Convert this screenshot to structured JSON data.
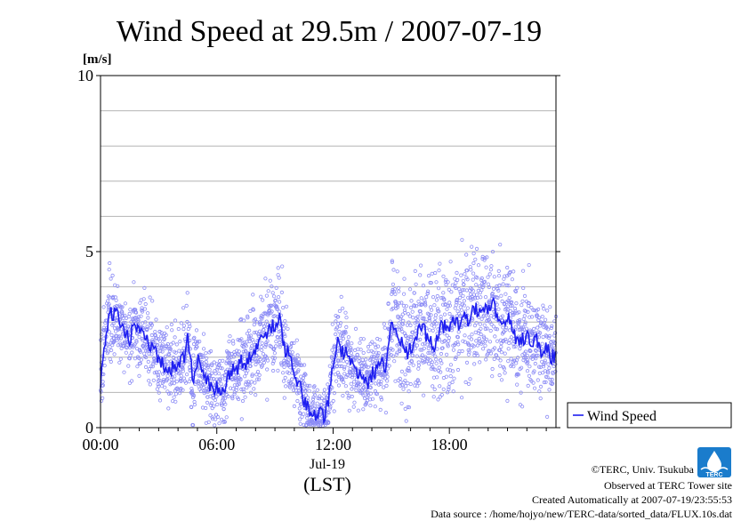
{
  "chart_data": {
    "type": "scatter",
    "title": "Wind Speed at 29.5m / 2007-07-19",
    "unit_label": "[m/s]",
    "ylim": [
      0,
      10
    ],
    "y_ticks": [
      "0",
      "5",
      "10"
    ],
    "xlim_hours": [
      0,
      23.5
    ],
    "x_ticks": [
      {
        "hour": 0,
        "label": "00:00"
      },
      {
        "hour": 6,
        "label": "06:00"
      },
      {
        "hour": 12,
        "label": "12:00"
      },
      {
        "hour": 18,
        "label": "18:00"
      }
    ],
    "date_label": "Jul-19",
    "timezone_label": "(LST)",
    "grid": true,
    "legend_position": "right",
    "series": [
      {
        "name": "Wind Speed",
        "color": "#1e1ef0",
        "scatter_color": "#8c8cf5",
        "x_hours": [
          0,
          0.25,
          0.5,
          0.75,
          1,
          1.25,
          1.5,
          1.75,
          2,
          2.25,
          2.5,
          2.75,
          3,
          3.25,
          3.5,
          3.75,
          4,
          4.25,
          4.5,
          4.75,
          5,
          5.25,
          5.5,
          5.75,
          6,
          6.25,
          6.5,
          6.75,
          7,
          7.25,
          7.5,
          7.75,
          8,
          8.25,
          8.5,
          8.75,
          9,
          9.25,
          9.5,
          9.75,
          10,
          10.25,
          10.5,
          10.75,
          11,
          11.25,
          11.5,
          11.75,
          12,
          12.25,
          12.5,
          12.75,
          13,
          13.25,
          13.5,
          13.75,
          14,
          14.25,
          14.5,
          14.75,
          15,
          15.25,
          15.5,
          15.75,
          16,
          16.25,
          16.5,
          16.75,
          17,
          17.25,
          17.5,
          17.75,
          18,
          18.25,
          18.5,
          18.75,
          19,
          19.25,
          19.5,
          19.75,
          20,
          20.25,
          20.5,
          20.75,
          21,
          21.25,
          21.5,
          21.75,
          22,
          22.25,
          22.5,
          22.75,
          23,
          23.25,
          23.5
        ],
        "mean_values": [
          1.3,
          2.6,
          3.2,
          3.3,
          3.0,
          2.7,
          2.5,
          2.9,
          2.8,
          2.6,
          2.4,
          2.2,
          2.0,
          1.8,
          1.7,
          1.7,
          1.9,
          1.9,
          2.5,
          1.4,
          1.9,
          1.7,
          1.3,
          1.1,
          1.2,
          0.9,
          1.3,
          1.7,
          1.6,
          1.9,
          1.8,
          2.1,
          2.3,
          2.6,
          2.5,
          2.8,
          2.9,
          3.1,
          2.2,
          2.1,
          1.6,
          1.2,
          0.8,
          0.5,
          0.4,
          0.4,
          0.3,
          0.7,
          1.8,
          2.4,
          2.1,
          2.2,
          1.7,
          1.5,
          1.4,
          1.2,
          1.5,
          1.7,
          1.8,
          1.6,
          3.1,
          2.9,
          2.4,
          2.1,
          2.2,
          2.6,
          2.9,
          2.7,
          2.5,
          2.3,
          2.8,
          2.9,
          2.8,
          3.0,
          2.9,
          3.1,
          3.1,
          3.4,
          3.3,
          3.4,
          3.3,
          3.5,
          3.2,
          2.9,
          3.2,
          2.8,
          2.5,
          2.5,
          2.6,
          2.4,
          2.5,
          2.2,
          2.3,
          2.0,
          2.1,
          2.2,
          1.9
        ],
        "spread_values": [
          0.5,
          0.5,
          0.6,
          0.6,
          0.6,
          0.6,
          0.6,
          0.6,
          0.6,
          0.6,
          0.6,
          0.6,
          0.6,
          0.6,
          0.6,
          0.6,
          0.6,
          0.6,
          0.6,
          0.6,
          0.6,
          0.6,
          0.6,
          0.6,
          0.6,
          0.6,
          0.6,
          0.6,
          0.6,
          0.7,
          0.7,
          0.7,
          0.7,
          0.7,
          0.7,
          0.8,
          0.8,
          0.8,
          0.7,
          0.6,
          0.6,
          0.6,
          0.5,
          0.5,
          0.4,
          0.4,
          0.3,
          0.6,
          0.8,
          0.8,
          0.7,
          0.7,
          0.6,
          0.6,
          0.6,
          0.5,
          0.6,
          0.6,
          0.6,
          0.6,
          0.8,
          0.9,
          0.9,
          0.9,
          0.9,
          1.0,
          1.0,
          1.0,
          1.0,
          1.0,
          1.0,
          1.0,
          1.0,
          1.0,
          1.0,
          1.0,
          1.0,
          1.0,
          1.0,
          1.0,
          1.0,
          1.0,
          1.0,
          1.0,
          1.0,
          0.9,
          0.9,
          0.9,
          0.9,
          0.8,
          0.8,
          0.8,
          0.8,
          0.7,
          0.7,
          0.7,
          0.7
        ]
      }
    ]
  },
  "credits": {
    "copyright": "©TERC, Univ. Tsukuba",
    "site": "Observed at TERC Tower site",
    "created": "Created Automatically at 2007-07-19/23:55:53",
    "source": "Data source : /home/hojyo/new/TERC-data/sorted_data/FLUX.10s.dat"
  },
  "logo": {
    "text": "TERC",
    "color": "#1a7ccc"
  }
}
